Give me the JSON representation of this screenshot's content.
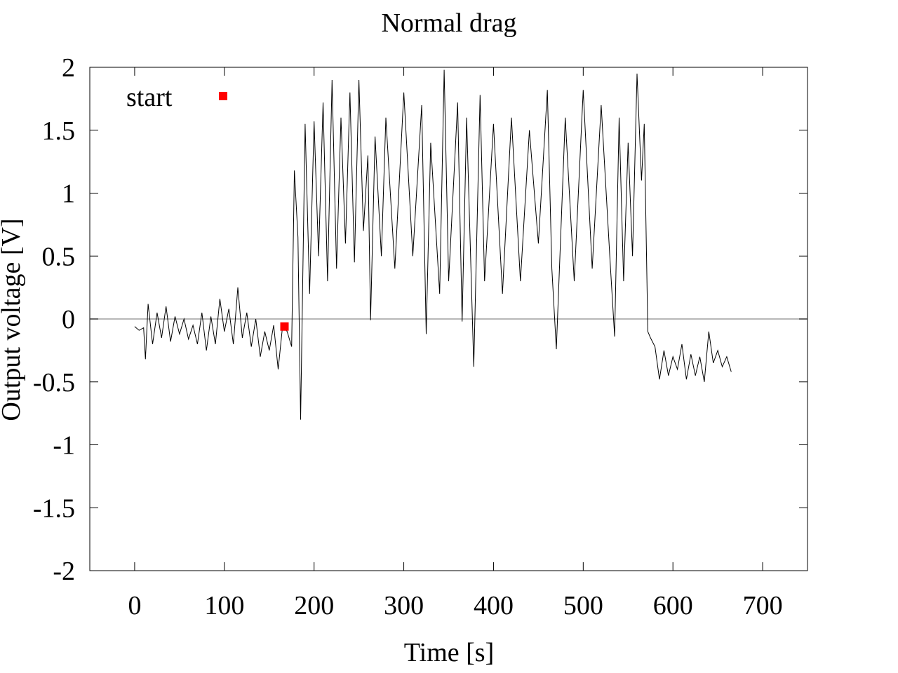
{
  "chart_data": {
    "type": "line",
    "title": "Normal drag",
    "xlabel": "Time [s]",
    "ylabel": "Output voltage [V]",
    "xlim": [
      -50,
      750
    ],
    "ylim": [
      -2,
      2
    ],
    "xticks": [
      0,
      100,
      200,
      300,
      400,
      500,
      600,
      700
    ],
    "yticks": [
      2,
      1.5,
      1,
      0.5,
      0,
      -0.5,
      -1,
      -1.5,
      -2
    ],
    "ytick_labels": [
      "2",
      "1.5",
      "1",
      "0.5",
      "0",
      "-0.5",
      "-1",
      "-1.5",
      "-2"
    ],
    "grid": false,
    "zero_line": true,
    "legend": {
      "position": "top-left",
      "entries": [
        {
          "label": "start",
          "color": "#ff0000",
          "marker": "square"
        }
      ]
    },
    "colors": {
      "signal": "#000000",
      "start_marker": "#ff0000",
      "zero_line": "#a0a0a0"
    },
    "series": [
      {
        "type": "line",
        "x": [
          0,
          5,
          10,
          12,
          15,
          20,
          25,
          30,
          35,
          40,
          45,
          50,
          55,
          60,
          65,
          70,
          75,
          80,
          85,
          90,
          95,
          100,
          105,
          110,
          115,
          120,
          125,
          130,
          135,
          140,
          145,
          150,
          155,
          160,
          165,
          170,
          175,
          178,
          182,
          185,
          190,
          195,
          200,
          205,
          210,
          215,
          220,
          225,
          230,
          235,
          240,
          245,
          250,
          255,
          260,
          263,
          268,
          275,
          280,
          290,
          300,
          310,
          320,
          325,
          330,
          340,
          345,
          350,
          360,
          365,
          370,
          378,
          385,
          390,
          400,
          410,
          420,
          430,
          440,
          450,
          460,
          465,
          470,
          480,
          490,
          500,
          510,
          520,
          530,
          535,
          540,
          545,
          550,
          555,
          560,
          565,
          568,
          572,
          575,
          580,
          585,
          590,
          595,
          600,
          605,
          610,
          615,
          620,
          625,
          630,
          635,
          640,
          645,
          650,
          655,
          660,
          665
        ],
        "y": [
          -0.06,
          -0.09,
          -0.07,
          -0.32,
          0.12,
          -0.2,
          0.05,
          -0.15,
          0.1,
          -0.18,
          0.02,
          -0.12,
          0.0,
          -0.16,
          -0.05,
          -0.2,
          0.05,
          -0.25,
          0.02,
          -0.2,
          0.16,
          -0.1,
          0.08,
          -0.2,
          0.25,
          -0.15,
          0.05,
          -0.22,
          0.0,
          -0.3,
          -0.1,
          -0.25,
          -0.05,
          -0.4,
          -0.05,
          -0.1,
          -0.22,
          1.18,
          0.65,
          -0.8,
          1.55,
          0.2,
          1.57,
          0.5,
          1.72,
          0.3,
          1.9,
          0.4,
          1.6,
          0.6,
          1.8,
          0.45,
          1.9,
          0.7,
          1.3,
          -0.01,
          1.45,
          0.5,
          1.6,
          0.4,
          1.8,
          0.5,
          1.7,
          -0.12,
          1.4,
          0.2,
          1.98,
          0.3,
          1.72,
          -0.02,
          1.6,
          -0.38,
          1.78,
          0.3,
          1.55,
          0.2,
          1.6,
          0.3,
          1.5,
          0.6,
          1.82,
          0.4,
          -0.24,
          1.6,
          0.3,
          1.82,
          0.4,
          1.7,
          0.45,
          -0.14,
          1.6,
          0.3,
          1.4,
          0.5,
          1.95,
          1.1,
          1.55,
          -0.1,
          -0.15,
          -0.22,
          -0.48,
          -0.25,
          -0.45,
          -0.3,
          -0.4,
          -0.2,
          -0.48,
          -0.28,
          -0.45,
          -0.3,
          -0.5,
          -0.1,
          -0.35,
          -0.25,
          -0.38,
          -0.3,
          -0.42
        ]
      },
      {
        "type": "scatter",
        "name": "start",
        "x": [
          167
        ],
        "y": [
          -0.06
        ]
      }
    ]
  }
}
